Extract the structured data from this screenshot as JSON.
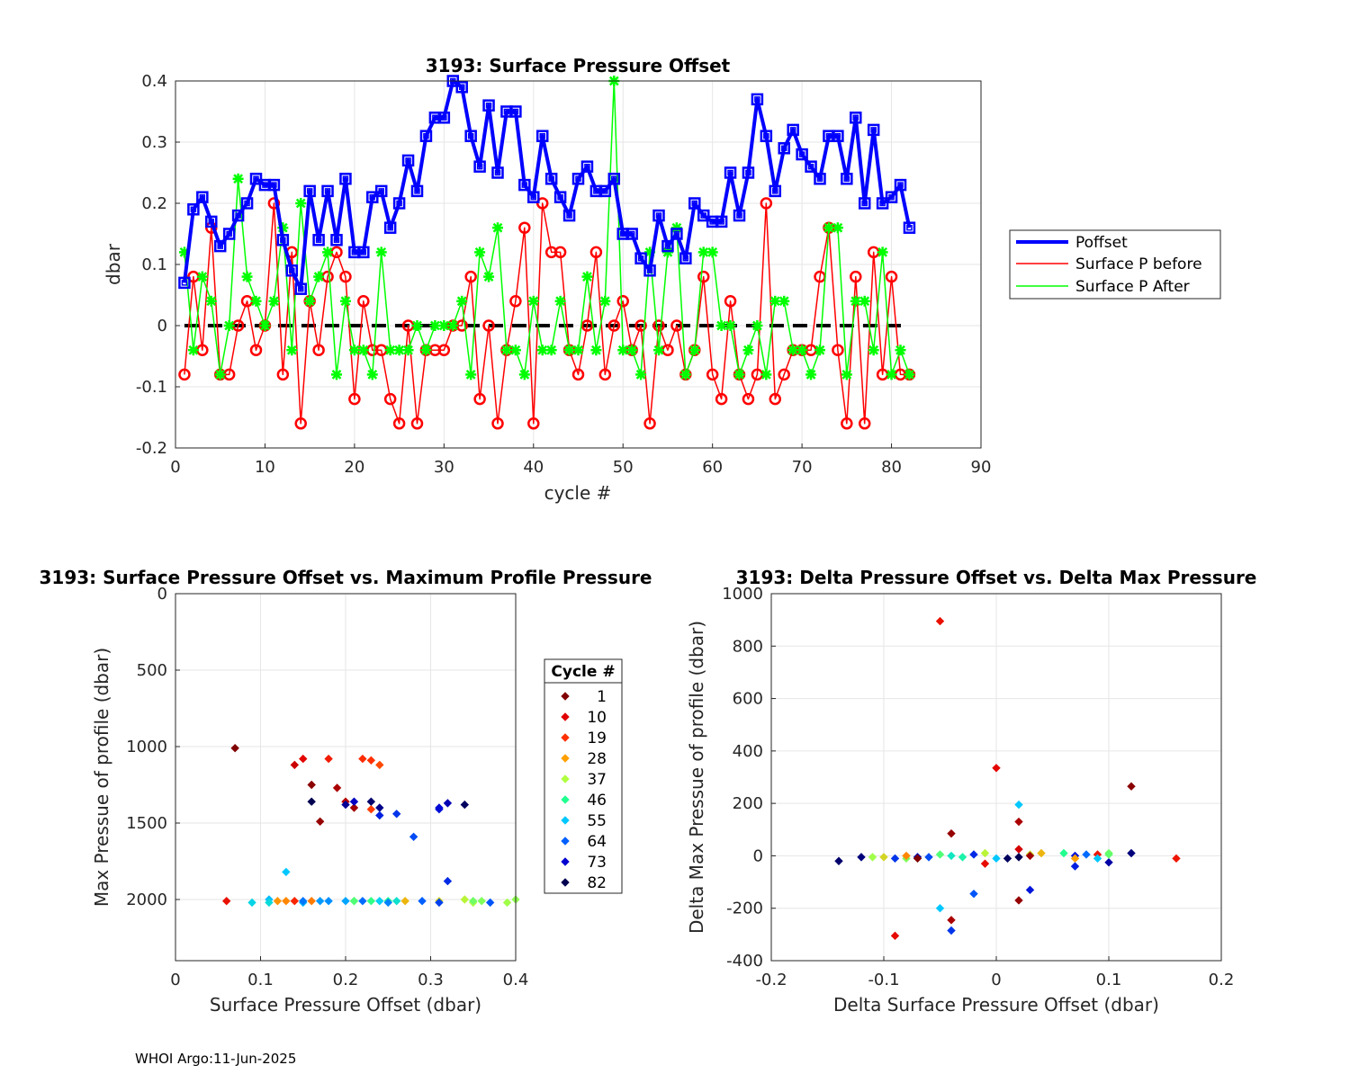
{
  "footer": "WHOI Argo:11-Jun-2025",
  "colors": {
    "poffset": "#0000ff",
    "before": "#ff0000",
    "after": "#00ff00",
    "zero_line": "#000000",
    "cycle_colormap": [
      "#800000",
      "#e00000",
      "#ff3000",
      "#ffa000",
      "#b0ff40",
      "#20ff90",
      "#00c8ff",
      "#0060ff",
      "#0000d0",
      "#000050"
    ]
  },
  "chart_data": [
    {
      "type": "line",
      "title": "3193: Surface Pressure Offset",
      "xlabel": "cycle #",
      "ylabel": "dbar",
      "xlim": [
        0,
        90
      ],
      "ylim": [
        -0.2,
        0.4
      ],
      "xticks": [
        0,
        10,
        20,
        30,
        40,
        50,
        60,
        70,
        80,
        90
      ],
      "yticks": [
        -0.2,
        -0.1,
        0,
        0.1,
        0.2,
        0.3,
        0.4
      ],
      "ytick_labels": [
        "-0.2",
        "-0.1",
        "0",
        "0.1",
        "0.2",
        "0.3",
        "0.4"
      ],
      "grid": true,
      "legend_position": "right",
      "x": [
        1,
        2,
        3,
        4,
        5,
        6,
        7,
        8,
        9,
        10,
        11,
        12,
        13,
        14,
        15,
        16,
        17,
        18,
        19,
        20,
        21,
        22,
        23,
        24,
        25,
        26,
        27,
        28,
        29,
        30,
        31,
        32,
        33,
        34,
        35,
        36,
        37,
        38,
        39,
        40,
        41,
        42,
        43,
        44,
        45,
        46,
        47,
        48,
        49,
        50,
        51,
        52,
        53,
        54,
        55,
        56,
        57,
        58,
        59,
        60,
        61,
        62,
        63,
        64,
        65,
        66,
        67,
        68,
        69,
        70,
        71,
        72,
        73,
        74,
        75,
        76,
        77,
        78,
        79,
        80,
        81,
        82
      ],
      "series": [
        {
          "name": "Poffset",
          "values": [
            0.07,
            0.19,
            0.21,
            0.17,
            0.13,
            0.15,
            0.18,
            0.2,
            0.24,
            0.23,
            0.23,
            0.14,
            0.09,
            0.06,
            0.22,
            0.14,
            0.22,
            0.14,
            0.24,
            0.12,
            0.12,
            0.21,
            0.22,
            0.16,
            0.2,
            0.27,
            0.22,
            0.31,
            0.34,
            0.34,
            0.4,
            0.39,
            0.31,
            0.26,
            0.36,
            0.25,
            0.35,
            0.35,
            0.23,
            0.21,
            0.31,
            0.24,
            0.21,
            0.18,
            0.24,
            0.26,
            0.22,
            0.22,
            0.24,
            0.15,
            0.15,
            0.11,
            0.09,
            0.18,
            0.13,
            0.15,
            0.11,
            0.2,
            0.18,
            0.17,
            0.17,
            0.25,
            0.18,
            0.25,
            0.37,
            0.31,
            0.22,
            0.29,
            0.32,
            0.28,
            0.26,
            0.24,
            0.31,
            0.31,
            0.24,
            0.34,
            0.2,
            0.32,
            0.2,
            0.21,
            0.23,
            0.16
          ]
        },
        {
          "name": "Surface P before",
          "values": [
            -0.08,
            0.08,
            -0.04,
            0.16,
            -0.08,
            -0.08,
            0.0,
            0.04,
            -0.04,
            0.0,
            0.2,
            -0.08,
            0.12,
            -0.16,
            0.04,
            -0.04,
            0.08,
            0.12,
            0.08,
            -0.12,
            0.04,
            -0.04,
            -0.04,
            -0.12,
            -0.16,
            0.0,
            -0.16,
            -0.04,
            -0.04,
            -0.04,
            0.0,
            0.0,
            0.08,
            -0.12,
            0.0,
            -0.16,
            -0.04,
            0.04,
            0.16,
            -0.16,
            0.2,
            0.12,
            0.12,
            -0.04,
            -0.08,
            0.0,
            0.12,
            -0.08,
            0.0,
            0.04,
            -0.04,
            0.0,
            -0.16,
            0.0,
            -0.04,
            0.0,
            -0.08,
            -0.04,
            0.08,
            -0.08,
            -0.12,
            0.04,
            -0.08,
            -0.12,
            -0.08,
            0.2,
            -0.12,
            -0.08,
            -0.04,
            -0.04,
            -0.04,
            0.08,
            0.16,
            -0.04,
            -0.16,
            0.08,
            -0.16,
            0.12,
            -0.08,
            0.08,
            -0.08,
            -0.08
          ]
        },
        {
          "name": "Surface P After",
          "values": [
            0.12,
            -0.04,
            0.08,
            0.04,
            -0.08,
            0.0,
            0.24,
            0.08,
            0.04,
            0.0,
            0.04,
            0.16,
            -0.04,
            0.2,
            0.04,
            0.08,
            0.12,
            -0.08,
            0.04,
            -0.04,
            -0.04,
            -0.08,
            0.12,
            -0.04,
            -0.04,
            -0.04,
            0.0,
            -0.04,
            0.0,
            0.0,
            0.0,
            0.04,
            -0.08,
            0.12,
            0.08,
            0.16,
            -0.04,
            -0.04,
            -0.08,
            0.04,
            -0.04,
            -0.04,
            0.04,
            -0.04,
            -0.04,
            0.08,
            -0.04,
            0.04,
            0.4,
            -0.04,
            -0.04,
            -0.08,
            0.12,
            -0.04,
            0.12,
            0.16,
            -0.08,
            -0.04,
            0.12,
            0.12,
            0.0,
            0.0,
            -0.08,
            -0.04,
            0.0,
            -0.08,
            0.04,
            0.04,
            -0.04,
            -0.04,
            -0.08,
            -0.04,
            0.16,
            0.16,
            -0.08,
            0.04,
            0.04,
            -0.04,
            0.12,
            -0.08,
            -0.04,
            -0.08
          ]
        }
      ]
    },
    {
      "type": "scatter",
      "title": "3193: Surface Pressure Offset vs. Maximum Profile Pressure",
      "xlabel": "Surface Pressure Offset (dbar)",
      "ylabel": "Max Pressue of profile (dbar)",
      "xlim": [
        0,
        0.4
      ],
      "ylim": [
        0,
        2400
      ],
      "y_reversed": true,
      "xticks": [
        0,
        0.1,
        0.2,
        0.3,
        0.4
      ],
      "xtick_labels": [
        "0",
        "0.1",
        "0.2",
        "0.3",
        "0.4"
      ],
      "yticks": [
        0,
        500,
        1000,
        1500,
        2000
      ],
      "ytick_labels": [
        "0",
        "500",
        "1000",
        "1500",
        "2000"
      ],
      "grid": true,
      "legend_title": "Cycle #",
      "legend_entries": [
        "1",
        "10",
        "19",
        "28",
        "37",
        "46",
        "55",
        "64",
        "73",
        "82"
      ],
      "legend_position": "right",
      "points": [
        {
          "x": 0.07,
          "y": 1010,
          "c": 1
        },
        {
          "x": 0.16,
          "y": 1250,
          "c": 2
        },
        {
          "x": 0.14,
          "y": 1120,
          "c": 8
        },
        {
          "x": 0.15,
          "y": 1080,
          "c": 11
        },
        {
          "x": 0.18,
          "y": 1080,
          "c": 15
        },
        {
          "x": 0.22,
          "y": 1080,
          "c": 18
        },
        {
          "x": 0.23,
          "y": 1090,
          "c": 19
        },
        {
          "x": 0.24,
          "y": 1120,
          "c": 21
        },
        {
          "x": 0.19,
          "y": 1270,
          "c": 5
        },
        {
          "x": 0.17,
          "y": 1490,
          "c": 3
        },
        {
          "x": 0.23,
          "y": 1410,
          "c": 20
        },
        {
          "x": 0.21,
          "y": 1400,
          "c": 4
        },
        {
          "x": 0.2,
          "y": 1360,
          "c": 6
        },
        {
          "x": 0.2,
          "y": 1380,
          "c": 77
        },
        {
          "x": 0.21,
          "y": 1360,
          "c": 74
        },
        {
          "x": 0.16,
          "y": 1360,
          "c": 82
        },
        {
          "x": 0.23,
          "y": 1360,
          "c": 80
        },
        {
          "x": 0.24,
          "y": 1400,
          "c": 78
        },
        {
          "x": 0.24,
          "y": 1450,
          "c": 70
        },
        {
          "x": 0.26,
          "y": 1440,
          "c": 68
        },
        {
          "x": 0.28,
          "y": 1590,
          "c": 66
        },
        {
          "x": 0.31,
          "y": 1410,
          "c": 71
        },
        {
          "x": 0.32,
          "y": 1370,
          "c": 75
        },
        {
          "x": 0.34,
          "y": 1380,
          "c": 81
        },
        {
          "x": 0.31,
          "y": 1400,
          "c": 72
        },
        {
          "x": 0.32,
          "y": 1880,
          "c": 69
        },
        {
          "x": 0.13,
          "y": 1820,
          "c": 55
        },
        {
          "x": 0.06,
          "y": 2010,
          "c": 13
        },
        {
          "x": 0.09,
          "y": 2020,
          "c": 53
        },
        {
          "x": 0.11,
          "y": 2000,
          "c": 56
        },
        {
          "x": 0.11,
          "y": 2020,
          "c": 52
        },
        {
          "x": 0.12,
          "y": 2010,
          "c": 27
        },
        {
          "x": 0.14,
          "y": 2010,
          "c": 17
        },
        {
          "x": 0.15,
          "y": 2020,
          "c": 57
        },
        {
          "x": 0.15,
          "y": 2010,
          "c": 62
        },
        {
          "x": 0.16,
          "y": 2010,
          "c": 25
        },
        {
          "x": 0.17,
          "y": 2010,
          "c": 59
        },
        {
          "x": 0.18,
          "y": 2010,
          "c": 60
        },
        {
          "x": 0.2,
          "y": 2010,
          "c": 58
        },
        {
          "x": 0.21,
          "y": 2010,
          "c": 44
        },
        {
          "x": 0.22,
          "y": 2010,
          "c": 63
        },
        {
          "x": 0.23,
          "y": 2010,
          "c": 45
        },
        {
          "x": 0.24,
          "y": 2010,
          "c": 54
        },
        {
          "x": 0.25,
          "y": 2010,
          "c": 46
        },
        {
          "x": 0.26,
          "y": 2010,
          "c": 51
        },
        {
          "x": 0.27,
          "y": 2010,
          "c": 30
        },
        {
          "x": 0.29,
          "y": 2010,
          "c": 64
        },
        {
          "x": 0.31,
          "y": 2010,
          "c": 33
        },
        {
          "x": 0.31,
          "y": 2020,
          "c": 67
        },
        {
          "x": 0.34,
          "y": 2000,
          "c": 36
        },
        {
          "x": 0.35,
          "y": 2020,
          "c": 37
        },
        {
          "x": 0.35,
          "y": 2010,
          "c": 41
        },
        {
          "x": 0.36,
          "y": 2010,
          "c": 40
        },
        {
          "x": 0.37,
          "y": 2020,
          "c": 65
        },
        {
          "x": 0.39,
          "y": 2020,
          "c": 38
        },
        {
          "x": 0.4,
          "y": 2000,
          "c": 39
        },
        {
          "x": 0.21,
          "y": 2010,
          "c": 43
        },
        {
          "x": 0.25,
          "y": 2020,
          "c": 61
        },
        {
          "x": 0.13,
          "y": 2010,
          "c": 26
        }
      ]
    },
    {
      "type": "scatter",
      "title": "3193: Delta Pressure Offset vs. Delta Max Pressure",
      "xlabel": "Delta Surface Pressure Offset (dbar)",
      "ylabel": "Delta Max Pressue of profile (dbar)",
      "xlim": [
        -0.2,
        0.2
      ],
      "ylim": [
        -400,
        1000
      ],
      "xticks": [
        -0.2,
        -0.1,
        0,
        0.1,
        0.2
      ],
      "xtick_labels": [
        "-0.2",
        "-0.1",
        "0",
        "0.1",
        "0.2"
      ],
      "yticks": [
        -400,
        -200,
        0,
        200,
        400,
        600,
        800,
        1000
      ],
      "ytick_labels": [
        "-400",
        "-200",
        "0",
        "200",
        "400",
        "600",
        "800",
        "1000"
      ],
      "grid": true,
      "points": [
        {
          "x": -0.05,
          "y": 895,
          "c": 13
        },
        {
          "x": 0.0,
          "y": 335,
          "c": 11
        },
        {
          "x": 0.12,
          "y": 265,
          "c": 2
        },
        {
          "x": 0.02,
          "y": 195,
          "c": 55
        },
        {
          "x": 0.02,
          "y": 130,
          "c": 5
        },
        {
          "x": -0.04,
          "y": 85,
          "c": 3
        },
        {
          "x": 0.02,
          "y": 25,
          "c": 9
        },
        {
          "x": -0.14,
          "y": -20,
          "c": 80
        },
        {
          "x": -0.12,
          "y": -5,
          "c": 79
        },
        {
          "x": -0.11,
          "y": -5,
          "c": 38
        },
        {
          "x": -0.09,
          "y": -10,
          "c": 68
        },
        {
          "x": -0.08,
          "y": -10,
          "c": 40
        },
        {
          "x": -0.08,
          "y": 0,
          "c": 26
        },
        {
          "x": -0.07,
          "y": -5,
          "c": 75
        },
        {
          "x": -0.07,
          "y": -10,
          "c": 1
        },
        {
          "x": -0.06,
          "y": -5,
          "c": 66
        },
        {
          "x": -0.05,
          "y": 5,
          "c": 43
        },
        {
          "x": -0.04,
          "y": 0,
          "c": 50
        },
        {
          "x": -0.03,
          "y": -5,
          "c": 48
        },
        {
          "x": -0.02,
          "y": 5,
          "c": 69
        },
        {
          "x": -0.01,
          "y": 10,
          "c": 36
        },
        {
          "x": -0.01,
          "y": -30,
          "c": 12
        },
        {
          "x": 0.0,
          "y": -10,
          "c": 55
        },
        {
          "x": 0.01,
          "y": -10,
          "c": 81
        },
        {
          "x": 0.02,
          "y": -5,
          "c": 82
        },
        {
          "x": 0.03,
          "y": 5,
          "c": 34
        },
        {
          "x": 0.03,
          "y": 0,
          "c": 4
        },
        {
          "x": 0.04,
          "y": 10,
          "c": 30
        },
        {
          "x": 0.06,
          "y": 10,
          "c": 46
        },
        {
          "x": 0.07,
          "y": 0,
          "c": 71
        },
        {
          "x": 0.07,
          "y": -10,
          "c": 28
        },
        {
          "x": 0.08,
          "y": 5,
          "c": 63
        },
        {
          "x": 0.09,
          "y": 5,
          "c": 14
        },
        {
          "x": 0.09,
          "y": -10,
          "c": 55
        },
        {
          "x": 0.1,
          "y": 10,
          "c": 41
        },
        {
          "x": 0.1,
          "y": -25,
          "c": 76
        },
        {
          "x": 0.12,
          "y": 10,
          "c": 79
        },
        {
          "x": 0.16,
          "y": -10,
          "c": 14
        },
        {
          "x": 0.07,
          "y": -40,
          "c": 70
        },
        {
          "x": -0.05,
          "y": -200,
          "c": 55
        },
        {
          "x": -0.09,
          "y": -305,
          "c": 12
        },
        {
          "x": -0.04,
          "y": -245,
          "c": 5
        },
        {
          "x": -0.04,
          "y": -285,
          "c": 68
        },
        {
          "x": -0.02,
          "y": -145,
          "c": 65
        },
        {
          "x": 0.02,
          "y": -170,
          "c": 3
        },
        {
          "x": 0.03,
          "y": -130,
          "c": 71
        },
        {
          "x": -0.1,
          "y": -5,
          "c": 33
        },
        {
          "x": 0.1,
          "y": 5,
          "c": 42
        }
      ]
    }
  ]
}
